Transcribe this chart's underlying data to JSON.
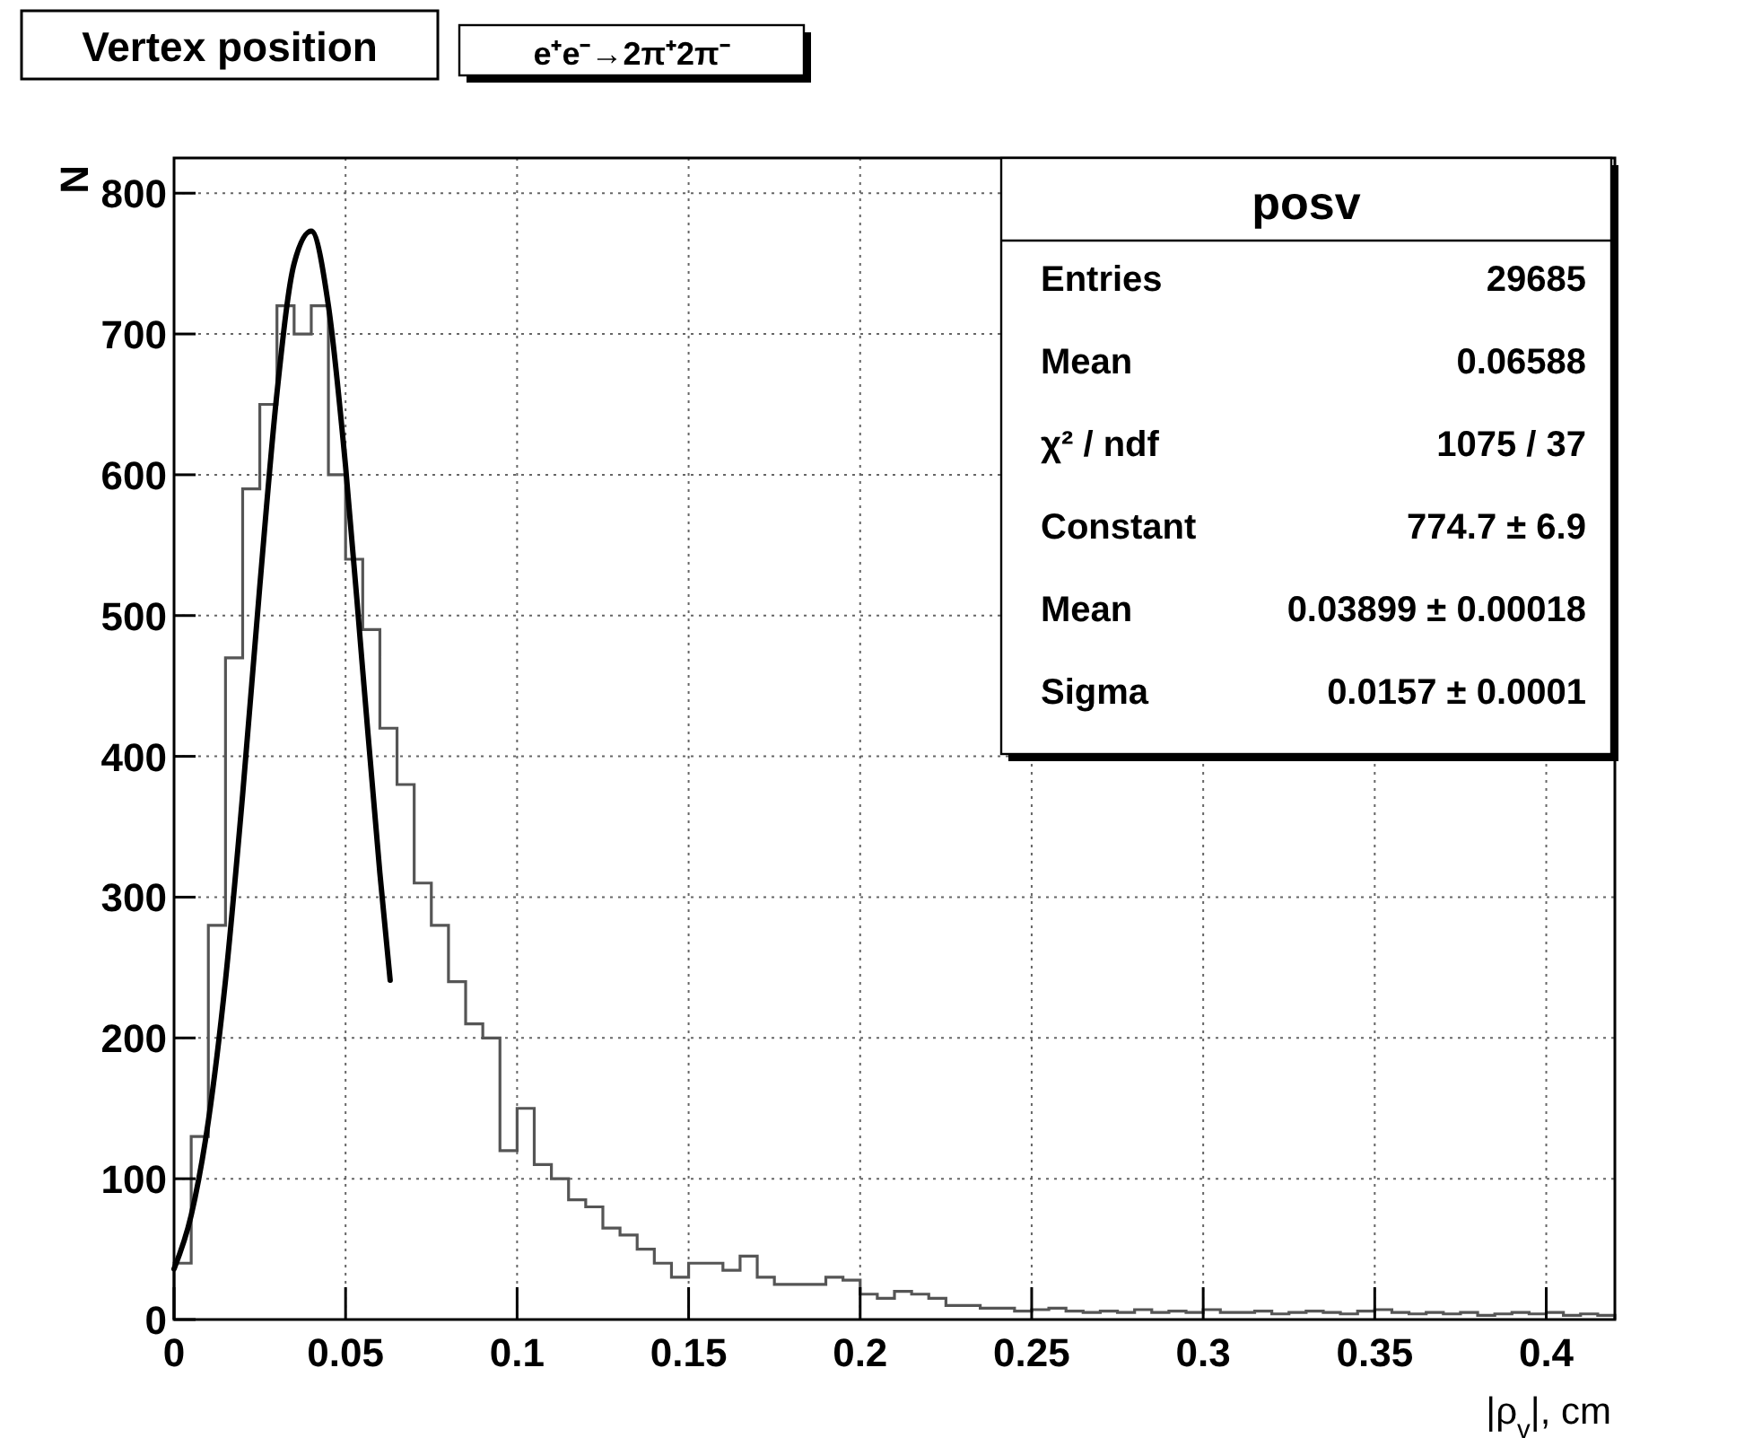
{
  "chart_data": {
    "type": "histogram",
    "title": "Vertex position",
    "subtitle": "e⁺e⁻→2π⁺2π⁻",
    "xlabel": "|ρ$_{v}$|, cm",
    "ylabel": "N",
    "bins": [
      0,
      0.005,
      0.01,
      0.015,
      0.02,
      0.025,
      0.03,
      0.035,
      0.04,
      0.045,
      0.05,
      0.055,
      0.06,
      0.065,
      0.07,
      0.075,
      0.08,
      0.085,
      0.09,
      0.095,
      0.1,
      0.105,
      0.11,
      0.115,
      0.12,
      0.125,
      0.13,
      0.135,
      0.14,
      0.145,
      0.15,
      0.155,
      0.16,
      0.165,
      0.17,
      0.175,
      0.18,
      0.185,
      0.19,
      0.195,
      0.2,
      0.205,
      0.21,
      0.215,
      0.22,
      0.225,
      0.23,
      0.235,
      0.24,
      0.245,
      0.25,
      0.255,
      0.26,
      0.265,
      0.27,
      0.275,
      0.28,
      0.285,
      0.29,
      0.295,
      0.3,
      0.305,
      0.31,
      0.315,
      0.32,
      0.325,
      0.33,
      0.335,
      0.34,
      0.345,
      0.35,
      0.355,
      0.36,
      0.365,
      0.37,
      0.375,
      0.38,
      0.385,
      0.39,
      0.395,
      0.4,
      0.405,
      0.41,
      0.415,
      0.42
    ],
    "values": [
      40,
      130,
      280,
      470,
      590,
      650,
      720,
      700,
      720,
      600,
      540,
      490,
      420,
      380,
      310,
      280,
      240,
      210,
      200,
      120,
      150,
      110,
      100,
      85,
      80,
      65,
      60,
      50,
      40,
      30,
      40,
      40,
      35,
      45,
      30,
      25,
      25,
      25,
      30,
      28,
      18,
      15,
      20,
      18,
      15,
      10,
      10,
      8,
      8,
      6,
      7,
      8,
      6,
      5,
      6,
      5,
      7,
      5,
      6,
      5,
      7,
      5,
      5,
      6,
      4,
      5,
      6,
      5,
      4,
      6,
      7,
      5,
      4,
      5,
      4,
      5,
      3,
      4,
      5,
      4,
      5,
      3,
      4,
      3
    ],
    "color": "#555555",
    "series": [
      {
        "type": "line",
        "color": "#000000",
        "x": [
          0,
          0.005,
          0.01,
          0.015,
          0.02,
          0.025,
          0.03,
          0.035,
          0.04,
          0.045,
          0.05,
          0.055,
          0.06,
          0.063
        ],
        "values": [
          36,
          74,
          141,
          241,
          373,
          521,
          658,
          750,
          773,
          720,
          606,
          461,
          317,
          241
        ]
      }
    ],
    "xlim": [
      0,
      0.42
    ],
    "xticks": [
      0,
      0.05,
      0.1,
      0.15,
      0.2,
      0.25,
      0.3,
      0.35,
      0.4
    ],
    "ylim": [
      0,
      825
    ],
    "yticks": [
      0,
      100,
      200,
      300,
      400,
      500,
      600,
      700,
      800
    ],
    "grid": true,
    "annotations": [
      "posv",
      "Entries",
      "29685",
      "Mean",
      "0.06588",
      "χ² / ndf",
      "1075 / 37",
      "Constant",
      "774.7 ± 6.9",
      "Mean",
      "0.03899 ± 0.00018",
      "Sigma",
      "0.0157 ± 0.0001"
    ]
  }
}
